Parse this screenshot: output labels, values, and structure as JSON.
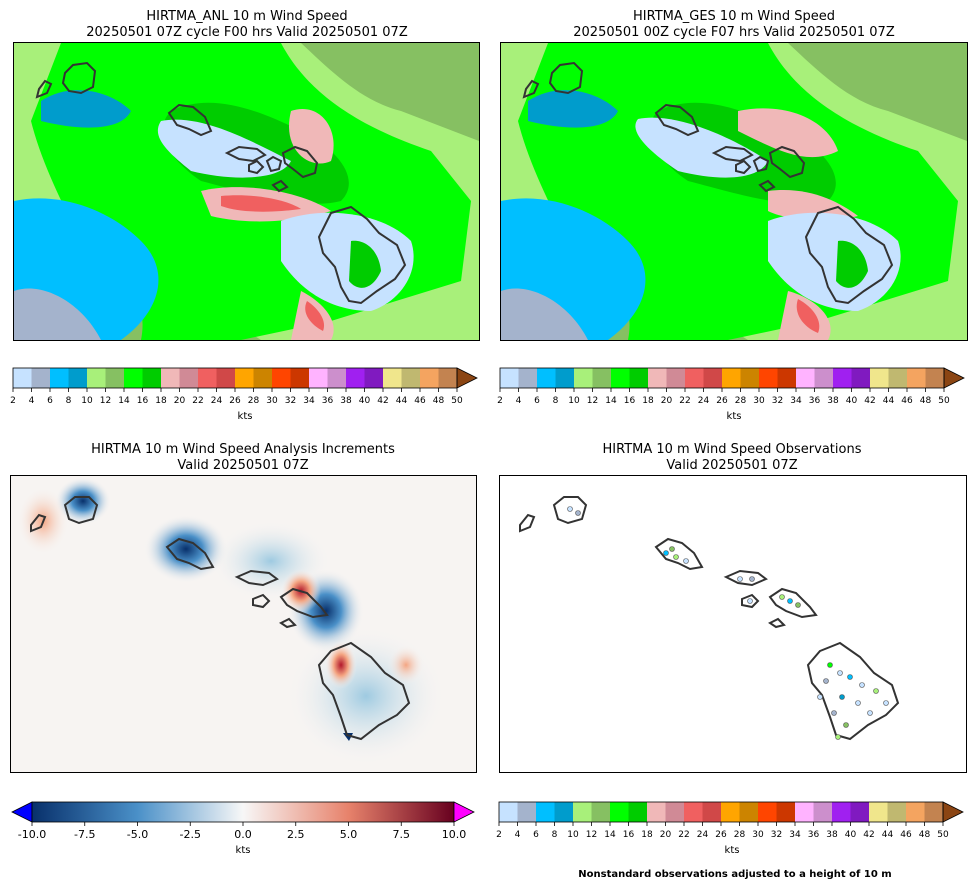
{
  "panels": [
    {
      "title_line1": "HIRTMA_ANL 10 m Wind Speed",
      "title_line2": "20250501 07Z cycle F00 hrs Valid 20250501 07Z"
    },
    {
      "title_line1": "HIRTMA_GES 10 m Wind Speed",
      "title_line2": "20250501 00Z cycle F07 hrs Valid 20250501 07Z"
    },
    {
      "title_line1": "HIRTMA 10 m Wind Speed Analysis Increments",
      "title_line2": "Valid 20250501 07Z"
    },
    {
      "title_line1": "HIRTMA 10 m Wind Speed Observations",
      "title_line2": "Valid 20250501 07Z"
    }
  ],
  "wind_colorbar": {
    "ticks": [
      "2",
      "4",
      "6",
      "8",
      "10",
      "12",
      "14",
      "16",
      "18",
      "20",
      "22",
      "24",
      "26",
      "28",
      "30",
      "32",
      "34",
      "36",
      "38",
      "40",
      "42",
      "44",
      "46",
      "48",
      "50"
    ],
    "colors": [
      "#c6e2ff",
      "#a4b3cc",
      "#00bfff",
      "#009ccc",
      "#a8f07a",
      "#86c062",
      "#00ff00",
      "#00cc00",
      "#f0b8b8",
      "#d08a96",
      "#f06060",
      "#d04848",
      "#ffa500",
      "#cc8400",
      "#ff4500",
      "#cc3700",
      "#ffb3ff",
      "#cc8fcc",
      "#a020f0",
      "#801ac0",
      "#f0e68c",
      "#c0b870",
      "#f4a460",
      "#c38350"
    ],
    "extend_color": "#8b4513",
    "units": "kts"
  },
  "increment_colorbar": {
    "ticks": [
      "-10.0",
      "-7.5",
      "-5.0",
      "-2.5",
      "0.0",
      "2.5",
      "5.0",
      "7.5",
      "10.0"
    ],
    "under_color": "#0000ff",
    "over_color": "#ff00ff",
    "units": "kts"
  },
  "note": "Nonstandard observations adjusted to a height of 10 m"
}
